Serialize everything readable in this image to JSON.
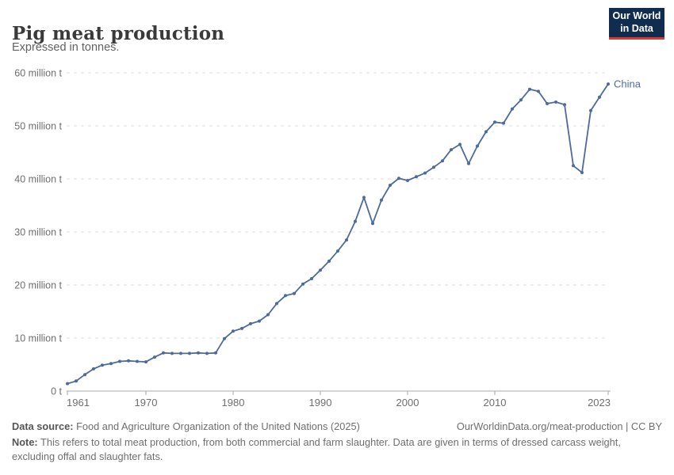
{
  "header": {
    "title": "Pig meat production",
    "subtitle": "Expressed in tonnes.",
    "logo": {
      "line1": "Our World",
      "line2": "in Data",
      "bg_color": "#102D50",
      "accent_color": "#D73C34",
      "text_color": "#ffffff"
    }
  },
  "chart_data": {
    "type": "line",
    "title": "Pig meat production",
    "unit": "tonnes",
    "xlabel": "",
    "ylabel": "",
    "xlim": [
      1961,
      2023
    ],
    "ylim_million_tonnes": [
      0,
      60
    ],
    "grid": "horizontal-dashed",
    "legend_position": "end-of-line-label",
    "x_ticks": [
      1961,
      1970,
      1980,
      1990,
      2000,
      2010,
      2023
    ],
    "y_ticks": [
      {
        "value_million_tonnes": 0,
        "label": "0 t"
      },
      {
        "value_million_tonnes": 10,
        "label": "10 million t"
      },
      {
        "value_million_tonnes": 20,
        "label": "20 million t"
      },
      {
        "value_million_tonnes": 30,
        "label": "30 million t"
      },
      {
        "value_million_tonnes": 40,
        "label": "40 million t"
      },
      {
        "value_million_tonnes": 50,
        "label": "50 million t"
      },
      {
        "value_million_tonnes": 60,
        "label": "60 million t"
      }
    ],
    "series": [
      {
        "name": "China",
        "color": "#4C6A9C",
        "years": [
          1961,
          1962,
          1963,
          1964,
          1965,
          1966,
          1967,
          1968,
          1969,
          1970,
          1971,
          1972,
          1973,
          1974,
          1975,
          1976,
          1977,
          1978,
          1979,
          1980,
          1981,
          1982,
          1983,
          1984,
          1985,
          1986,
          1987,
          1988,
          1989,
          1990,
          1991,
          1992,
          1993,
          1994,
          1995,
          1996,
          1997,
          1998,
          1999,
          2000,
          2001,
          2002,
          2003,
          2004,
          2005,
          2006,
          2007,
          2008,
          2009,
          2010,
          2011,
          2012,
          2013,
          2014,
          2015,
          2016,
          2017,
          2018,
          2019,
          2020,
          2021,
          2022,
          2023
        ],
        "values_million_tonnes": [
          1.4,
          1.9,
          3.1,
          4.2,
          4.9,
          5.2,
          5.6,
          5.7,
          5.6,
          5.5,
          6.4,
          7.2,
          7.1,
          7.1,
          7.1,
          7.2,
          7.1,
          7.2,
          9.9,
          11.3,
          11.8,
          12.7,
          13.2,
          14.4,
          16.5,
          18.0,
          18.4,
          20.2,
          21.2,
          22.8,
          24.5,
          26.4,
          28.5,
          32.0,
          36.5,
          31.6,
          36.0,
          38.8,
          40.1,
          39.7,
          40.4,
          41.1,
          42.2,
          43.4,
          45.5,
          46.5,
          42.9,
          46.2,
          48.9,
          50.7,
          50.5,
          53.2,
          54.9,
          56.9,
          56.5,
          54.2,
          54.5,
          54.0,
          42.5,
          41.2,
          52.9,
          55.4,
          57.9
        ]
      }
    ]
  },
  "footer": {
    "datasource_label": "Data source:",
    "datasource_text": " Food and Agriculture Organization of the United Nations (2025)",
    "url_text": "OurWorldinData.org/meat-production | CC BY",
    "note_label": "Note:",
    "note_text": " This refers to total meat production, from both commercial and farm slaughter. Data are given in terms of dressed carcass weight, excluding offal and slaughter fats."
  }
}
